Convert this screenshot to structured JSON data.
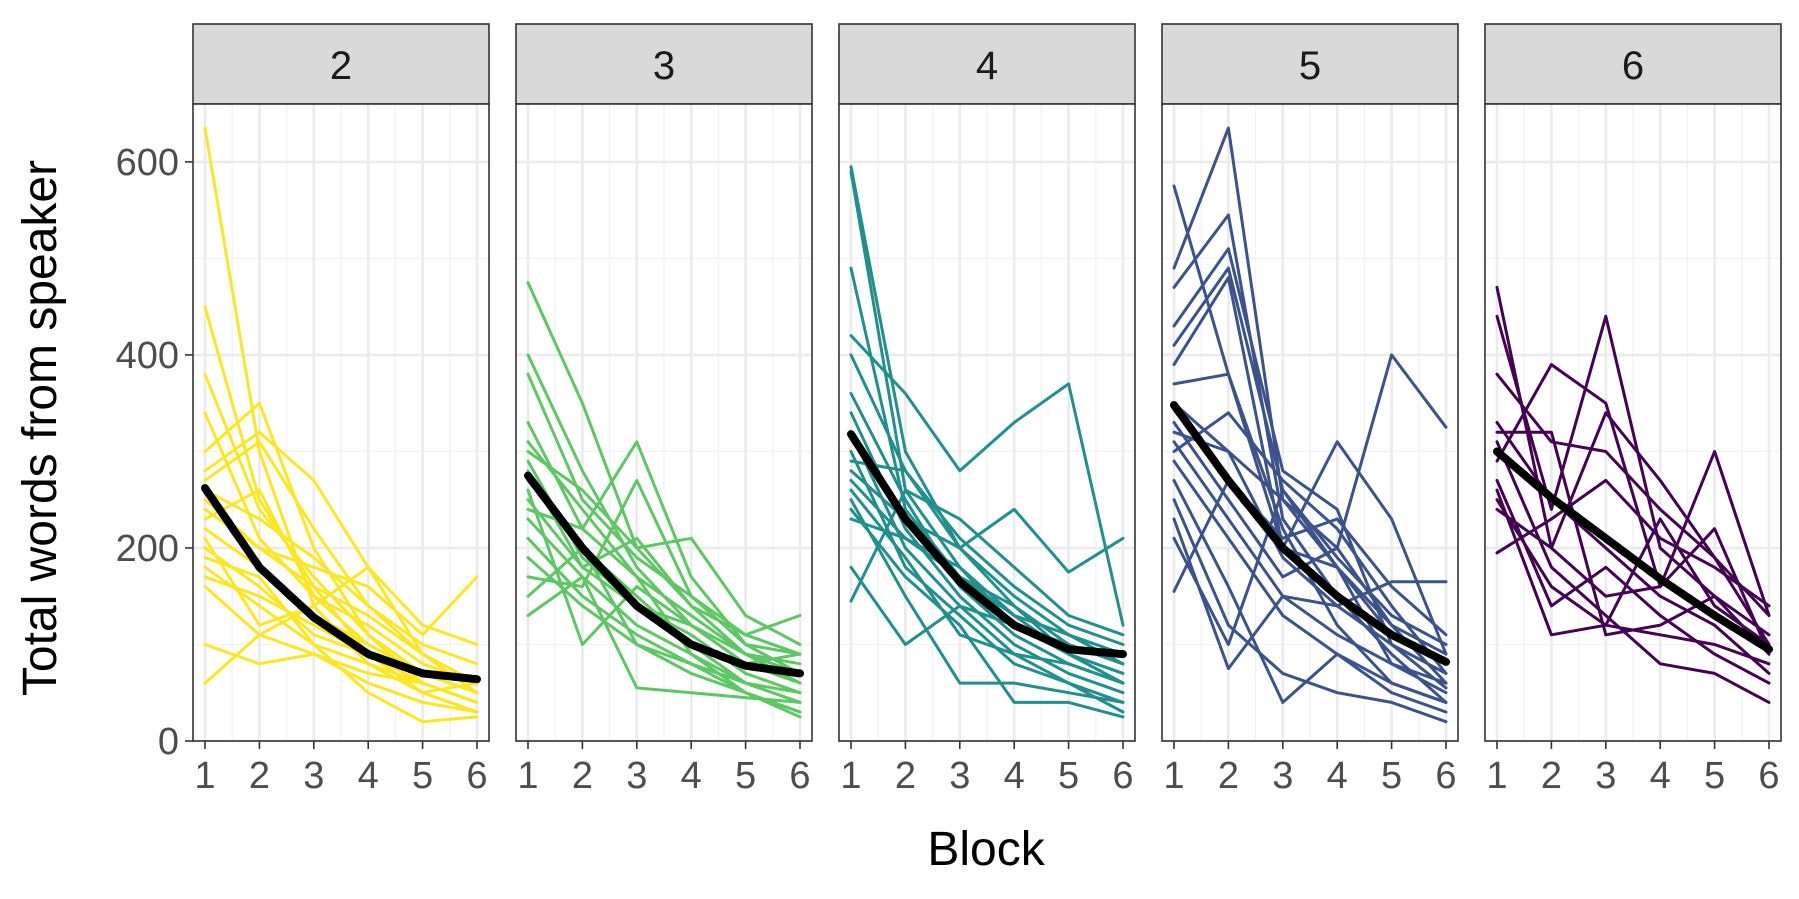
{
  "chart_data": {
    "type": "line",
    "facet_variable": "group size",
    "xlabel": "Block",
    "ylabel": "Total words from speaker",
    "x": [
      1,
      2,
      3,
      4,
      5,
      6
    ],
    "x_ticks": [
      "1",
      "2",
      "3",
      "4",
      "5",
      "6"
    ],
    "ylim": [
      0,
      660
    ],
    "y_ticks": [
      0,
      200,
      400,
      600
    ],
    "y_tick_labels": [
      "0",
      "200",
      "400",
      "600"
    ],
    "legend": "none",
    "grid": true,
    "panels": [
      {
        "label": "2",
        "color": "#FDE725",
        "fit": [
          262,
          180,
          128,
          90,
          70,
          64
        ],
        "series": [
          [
            635,
            300,
            140,
            80,
            60,
            40
          ],
          [
            450,
            250,
            160,
            90,
            50,
            30
          ],
          [
            380,
            240,
            170,
            110,
            70,
            50
          ],
          [
            340,
            210,
            150,
            120,
            80,
            60
          ],
          [
            300,
            350,
            200,
            110,
            60,
            40
          ],
          [
            280,
            320,
            270,
            180,
            90,
            50
          ],
          [
            260,
            230,
            190,
            140,
            100,
            80
          ],
          [
            240,
            200,
            160,
            130,
            90,
            60
          ],
          [
            220,
            180,
            130,
            100,
            70,
            50
          ],
          [
            200,
            160,
            110,
            90,
            60,
            40
          ],
          [
            180,
            140,
            100,
            80,
            50,
            30
          ],
          [
            170,
            150,
            120,
            90,
            70,
            50
          ],
          [
            160,
            110,
            90,
            70,
            60,
            40
          ],
          [
            100,
            80,
            90,
            60,
            40,
            30
          ],
          [
            60,
            110,
            140,
            80,
            50,
            60
          ],
          [
            230,
            260,
            150,
            100,
            70,
            50
          ],
          [
            250,
            200,
            180,
            160,
            110,
            170
          ],
          [
            270,
            310,
            220,
            140,
            90,
            60
          ],
          [
            210,
            120,
            140,
            180,
            120,
            100
          ],
          [
            190,
            170,
            100,
            50,
            20,
            25
          ]
        ]
      },
      {
        "label": "3",
        "color": "#5DC863",
        "fit": [
          275,
          200,
          140,
          100,
          78,
          70
        ],
        "series": [
          [
            475,
            350,
            200,
            140,
            90,
            80
          ],
          [
            400,
            280,
            180,
            120,
            80,
            60
          ],
          [
            380,
            250,
            190,
            150,
            110,
            90
          ],
          [
            330,
            220,
            310,
            170,
            100,
            70
          ],
          [
            310,
            240,
            170,
            130,
            90,
            60
          ],
          [
            290,
            190,
            140,
            110,
            70,
            50
          ],
          [
            270,
            200,
            150,
            100,
            60,
            40
          ],
          [
            250,
            180,
            140,
            120,
            90,
            70
          ],
          [
            230,
            170,
            120,
            90,
            60,
            50
          ],
          [
            210,
            150,
            110,
            80,
            50,
            30
          ],
          [
            190,
            140,
            100,
            70,
            50,
            25
          ],
          [
            170,
            160,
            270,
            150,
            100,
            90
          ],
          [
            150,
            200,
            100,
            80,
            60,
            40
          ],
          [
            130,
            170,
            55,
            50,
            45,
            40
          ],
          [
            300,
            260,
            200,
            210,
            130,
            100
          ],
          [
            280,
            180,
            210,
            140,
            110,
            130
          ],
          [
            260,
            100,
            160,
            120,
            80,
            90
          ],
          [
            240,
            220,
            170,
            90,
            50,
            30
          ]
        ]
      },
      {
        "label": "4",
        "color": "#21908C",
        "fit": [
          318,
          230,
          165,
          120,
          95,
          90
        ],
        "series": [
          [
            595,
            300,
            200,
            140,
            100,
            80
          ],
          [
            590,
            260,
            180,
            120,
            90,
            70
          ],
          [
            490,
            240,
            170,
            130,
            90,
            60
          ],
          [
            420,
            360,
            280,
            330,
            370,
            120
          ],
          [
            400,
            280,
            200,
            150,
            110,
            80
          ],
          [
            360,
            250,
            160,
            110,
            80,
            60
          ],
          [
            340,
            220,
            150,
            100,
            70,
            50
          ],
          [
            320,
            200,
            140,
            90,
            60,
            40
          ],
          [
            300,
            180,
            130,
            80,
            60,
            30
          ],
          [
            280,
            230,
            200,
            240,
            175,
            210
          ],
          [
            260,
            190,
            110,
            90,
            80,
            60
          ],
          [
            250,
            150,
            60,
            60,
            50,
            40
          ],
          [
            240,
            170,
            120,
            40,
            40,
            25
          ],
          [
            230,
            210,
            180,
            130,
            110,
            90
          ],
          [
            180,
            100,
            140,
            120,
            100,
            80
          ],
          [
            145,
            260,
            230,
            180,
            130,
            110
          ],
          [
            290,
            280,
            210,
            160,
            120,
            100
          ],
          [
            270,
            210,
            170,
            140,
            90,
            60
          ]
        ]
      },
      {
        "label": "5",
        "color": "#3B528B",
        "fit": [
          348,
          270,
          200,
          150,
          110,
          82
        ],
        "series": [
          [
            575,
            380,
            200,
            180,
            110,
            80
          ],
          [
            490,
            635,
            250,
            200,
            120,
            60
          ],
          [
            470,
            545,
            230,
            150,
            90,
            40
          ],
          [
            430,
            510,
            280,
            240,
            100,
            55
          ],
          [
            410,
            490,
            260,
            180,
            80,
            50
          ],
          [
            390,
            480,
            200,
            310,
            230,
            90
          ],
          [
            370,
            380,
            220,
            120,
            60,
            40
          ],
          [
            350,
            300,
            190,
            140,
            100,
            70
          ],
          [
            330,
            250,
            170,
            200,
            400,
            325
          ],
          [
            310,
            230,
            150,
            110,
            80,
            60
          ],
          [
            290,
            210,
            130,
            90,
            60,
            40
          ],
          [
            270,
            160,
            40,
            90,
            50,
            30
          ],
          [
            250,
            120,
            70,
            50,
            40,
            20
          ],
          [
            230,
            75,
            150,
            140,
            165,
            165
          ],
          [
            210,
            100,
            260,
            190,
            130,
            100
          ],
          [
            155,
            270,
            210,
            230,
            160,
            110
          ],
          [
            320,
            300,
            250,
            180,
            120,
            90
          ],
          [
            300,
            340,
            270,
            220,
            140,
            70
          ]
        ]
      },
      {
        "label": "6",
        "color": "#440154",
        "fit": [
          300,
          252,
          210,
          168,
          130,
          95
        ],
        "series": [
          [
            470,
            200,
            340,
            270,
            190,
            130
          ],
          [
            440,
            240,
            440,
            200,
            150,
            90
          ],
          [
            380,
            310,
            300,
            240,
            190,
            100
          ],
          [
            330,
            250,
            200,
            150,
            120,
            70
          ],
          [
            310,
            180,
            130,
            80,
            70,
            40
          ],
          [
            290,
            390,
            350,
            160,
            300,
            130
          ],
          [
            270,
            140,
            180,
            130,
            90,
            60
          ],
          [
            260,
            110,
            120,
            110,
            100,
            80
          ],
          [
            240,
            200,
            150,
            160,
            220,
            90
          ],
          [
            195,
            230,
            270,
            210,
            180,
            140
          ],
          [
            320,
            320,
            110,
            120,
            150,
            110
          ],
          [
            250,
            160,
            120,
            230,
            140,
            100
          ]
        ]
      }
    ]
  }
}
